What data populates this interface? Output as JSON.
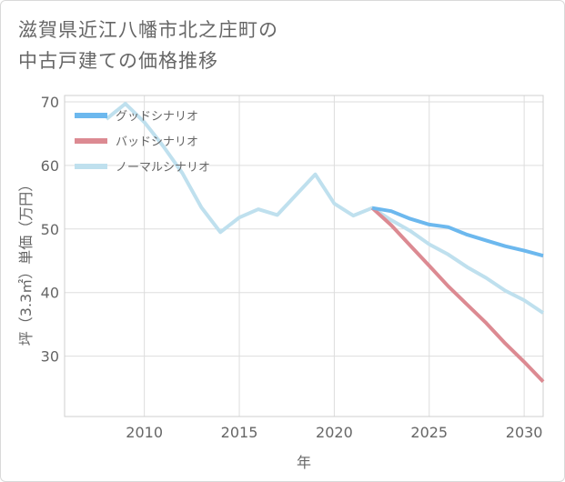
{
  "title_line1": "滋賀県近江八幡市北之庄町の",
  "title_line2": "中古戸建ての価格推移",
  "chart_data": {
    "type": "line",
    "title": "滋賀県近江八幡市北之庄町の中古戸建ての価格推移",
    "xlabel": "年",
    "ylabel": "坪（3.3㎡）単価（万円）",
    "xlim": [
      2005.8,
      2031
    ],
    "ylim": [
      20.5,
      71
    ],
    "xticks": [
      2010,
      2015,
      2020,
      2025,
      2030
    ],
    "yticks": [
      30,
      40,
      50,
      60,
      70
    ],
    "grid": true,
    "legend_position": "top-left",
    "series": [
      {
        "name": "グッドシナリオ",
        "color": "#6cb8ee",
        "x": [
          2022,
          2023,
          2024,
          2025,
          2026,
          2027,
          2028,
          2029,
          2030,
          2031
        ],
        "y": [
          53.3,
          52.8,
          51.6,
          50.7,
          50.3,
          49.1,
          48.2,
          47.3,
          46.6,
          45.8
        ]
      },
      {
        "name": "バッドシナリオ",
        "color": "#dc8a92",
        "x": [
          2022,
          2023,
          2024,
          2025,
          2026,
          2027,
          2028,
          2029,
          2030,
          2031
        ],
        "y": [
          53.3,
          50.6,
          47.4,
          44.2,
          41.0,
          38.1,
          35.2,
          32.0,
          29.1,
          26.0
        ]
      },
      {
        "name": "ノーマルシナリオ",
        "color": "#bfe0ee",
        "x": [
          2008,
          2009,
          2010,
          2011,
          2012,
          2013,
          2014,
          2015,
          2016,
          2017,
          2018,
          2019,
          2020,
          2021,
          2022,
          2023,
          2024,
          2025,
          2026,
          2027,
          2028,
          2029,
          2030,
          2031
        ],
        "y": [
          67.3,
          69.7,
          66.8,
          63.0,
          58.8,
          53.4,
          49.5,
          51.8,
          53.1,
          52.2,
          55.4,
          58.6,
          54.0,
          52.1,
          53.3,
          51.4,
          49.7,
          47.6,
          46.0,
          44.0,
          42.3,
          40.3,
          38.8,
          36.8
        ]
      }
    ]
  }
}
